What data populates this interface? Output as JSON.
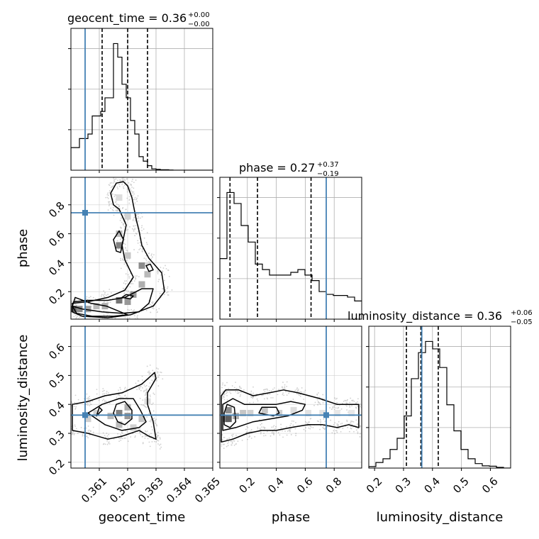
{
  "figure": {
    "kind": "corner plot",
    "truth_color": "#4682b4",
    "quantile_style": "dashed",
    "grid": true
  },
  "parameters": [
    {
      "key": "geocent_time",
      "label": "geocent_time",
      "truth": 0.3605,
      "title": {
        "main": "geocent_time = 0.36",
        "sup": "+0.00",
        "sub": "−0.00"
      },
      "quantiles": [
        0.3611,
        0.362,
        0.3627
      ],
      "range": [
        0.36,
        0.365
      ],
      "ticks": [
        {
          "v": 0.361,
          "label": "0.361"
        },
        {
          "v": 0.362,
          "label": "0.362"
        },
        {
          "v": 0.363,
          "label": "0.363"
        },
        {
          "v": 0.364,
          "label": "0.364"
        },
        {
          "v": 0.365,
          "label": "0.365"
        }
      ]
    },
    {
      "key": "phase",
      "label": "phase",
      "truth": 0.745,
      "title": {
        "main": "phase = 0.27",
        "sup": "+0.37",
        "sub": "−0.19"
      },
      "quantiles": [
        0.08,
        0.27,
        0.64
      ],
      "range": [
        0.01,
        0.99
      ],
      "ticks": [
        {
          "v": 0.2,
          "label": "0.2"
        },
        {
          "v": 0.4,
          "label": "0.4"
        },
        {
          "v": 0.6,
          "label": "0.6"
        },
        {
          "v": 0.8,
          "label": "0.8"
        }
      ]
    },
    {
      "key": "luminosity_distance",
      "label": "luminosity_distance",
      "truth": 0.363,
      "title": {
        "main": "luminosity_distance = 0.36",
        "sup": "+0.06",
        "sub": "−0.05"
      },
      "quantiles": [
        0.31,
        0.36,
        0.42
      ],
      "range": [
        0.18,
        0.67
      ],
      "ticks": [
        {
          "v": 0.2,
          "label": "0.2"
        },
        {
          "v": 0.3,
          "label": "0.3"
        },
        {
          "v": 0.4,
          "label": "0.4"
        },
        {
          "v": 0.5,
          "label": "0.5"
        },
        {
          "v": 0.6,
          "label": "0.6"
        }
      ]
    }
  ],
  "chart_data": {
    "type": "corner",
    "histograms": {
      "geocent_time": {
        "bin_edges_start": 0.36,
        "bin_width": 0.00015,
        "counts": [
          5,
          5,
          7,
          7,
          8,
          12,
          12,
          13,
          16,
          16,
          28,
          25,
          19,
          16,
          11,
          8,
          3,
          2,
          1,
          0.3,
          0.2,
          0.1,
          0.1,
          0.05,
          0,
          0,
          0,
          0,
          0,
          0,
          0,
          0,
          0,
          0
        ]
      },
      "phase": {
        "bin_edges_start": 0.01,
        "bin_width": 0.049,
        "counts": [
          11,
          23,
          21,
          17,
          14,
          10,
          9,
          8,
          8,
          8,
          8.5,
          9,
          8,
          7,
          5,
          4.5,
          4.3,
          4.3,
          4,
          3.3
        ]
      },
      "luminosity_distance": {
        "bin_edges_start": 0.18,
        "bin_width": 0.0245,
        "counts": [
          0.4,
          1.5,
          2.5,
          5,
          8,
          14,
          24,
          31,
          34,
          32,
          27,
          17,
          10,
          5,
          2.5,
          1.2,
          0.6,
          0.5,
          0.2,
          0
        ]
      }
    },
    "contours_2d": {
      "geocent_time_vs_phase": [
        [
          [
            0.36015,
            0.16
          ],
          [
            0.3607,
            0.12
          ],
          [
            0.36125,
            0.1
          ],
          [
            0.36175,
            0.06
          ],
          [
            0.362,
            0.04
          ],
          [
            0.3615,
            0.03
          ],
          [
            0.36075,
            0.03
          ],
          [
            0.3602,
            0.05
          ],
          [
            0.36005,
            0.1
          ]
        ],
        [
          [
            0.3601,
            0.13
          ],
          [
            0.3606,
            0.14
          ],
          [
            0.3613,
            0.14
          ],
          [
            0.3619,
            0.16
          ],
          [
            0.3625,
            0.22
          ],
          [
            0.3629,
            0.22
          ],
          [
            0.36275,
            0.12
          ],
          [
            0.3624,
            0.06
          ],
          [
            0.3618,
            0.05
          ],
          [
            0.3611,
            0.06
          ],
          [
            0.3604,
            0.08
          ],
          [
            0.36005,
            0.1
          ]
        ],
        [
          [
            0.36005,
            0.12
          ],
          [
            0.3606,
            0.13
          ],
          [
            0.3613,
            0.16
          ],
          [
            0.3619,
            0.21
          ],
          [
            0.3622,
            0.3
          ],
          [
            0.3619,
            0.42
          ],
          [
            0.3618,
            0.52
          ],
          [
            0.36195,
            0.66
          ],
          [
            0.3617,
            0.77
          ],
          [
            0.3615,
            0.8
          ],
          [
            0.3614,
            0.88
          ],
          [
            0.3616,
            0.95
          ],
          [
            0.36185,
            0.96
          ],
          [
            0.362,
            0.93
          ],
          [
            0.36215,
            0.85
          ],
          [
            0.3623,
            0.7
          ],
          [
            0.3624,
            0.62
          ],
          [
            0.3625,
            0.52
          ],
          [
            0.36275,
            0.43
          ],
          [
            0.3632,
            0.33
          ],
          [
            0.3633,
            0.2
          ],
          [
            0.3629,
            0.1
          ],
          [
            0.3621,
            0.04
          ],
          [
            0.3613,
            0.02
          ],
          [
            0.3604,
            0.03
          ],
          [
            0.36005,
            0.06
          ]
        ],
        [
          [
            0.3615,
            0.56
          ],
          [
            0.3616,
            0.48
          ],
          [
            0.36175,
            0.47
          ],
          [
            0.36185,
            0.56
          ],
          [
            0.3617,
            0.62
          ]
        ],
        [
          [
            0.36265,
            0.38
          ],
          [
            0.36275,
            0.34
          ],
          [
            0.3629,
            0.35
          ],
          [
            0.3628,
            0.39
          ]
        ],
        [
          [
            0.3618,
            0.16
          ],
          [
            0.3621,
            0.15
          ],
          [
            0.3622,
            0.17
          ],
          [
            0.36195,
            0.18
          ]
        ]
      ],
      "geocent_time_vs_luminosity_distance": [
        [
          [
            0.36005,
            0.31
          ],
          [
            0.3606,
            0.3
          ],
          [
            0.3613,
            0.28
          ],
          [
            0.3618,
            0.29
          ],
          [
            0.3624,
            0.31
          ],
          [
            0.36275,
            0.29
          ],
          [
            0.363,
            0.28
          ],
          [
            0.3629,
            0.34
          ],
          [
            0.3627,
            0.4
          ],
          [
            0.3627,
            0.44
          ],
          [
            0.363,
            0.49
          ],
          [
            0.36295,
            0.51
          ],
          [
            0.3625,
            0.47
          ],
          [
            0.3618,
            0.44
          ],
          [
            0.3612,
            0.43
          ],
          [
            0.3606,
            0.41
          ],
          [
            0.36005,
            0.4
          ]
        ],
        [
          [
            0.3606,
            0.37
          ],
          [
            0.3612,
            0.33
          ],
          [
            0.3618,
            0.31
          ],
          [
            0.3624,
            0.32
          ],
          [
            0.36265,
            0.34
          ],
          [
            0.36245,
            0.38
          ],
          [
            0.3622,
            0.42
          ],
          [
            0.3617,
            0.42
          ],
          [
            0.3611,
            0.4
          ]
        ],
        [
          [
            0.3615,
            0.37
          ],
          [
            0.36165,
            0.34
          ],
          [
            0.3619,
            0.33
          ],
          [
            0.36215,
            0.35
          ],
          [
            0.36215,
            0.38
          ],
          [
            0.3619,
            0.41
          ],
          [
            0.3616,
            0.4
          ]
        ],
        [
          [
            0.3609,
            0.36
          ],
          [
            0.361,
            0.37
          ],
          [
            0.3611,
            0.38
          ],
          [
            0.361,
            0.39
          ]
        ]
      ],
      "phase_vs_luminosity_distance": [
        [
          [
            0.02,
            0.27
          ],
          [
            0.1,
            0.28
          ],
          [
            0.2,
            0.3
          ],
          [
            0.3,
            0.31
          ],
          [
            0.4,
            0.31
          ],
          [
            0.5,
            0.32
          ],
          [
            0.62,
            0.33
          ],
          [
            0.72,
            0.33
          ],
          [
            0.82,
            0.32
          ],
          [
            0.9,
            0.33
          ],
          [
            0.97,
            0.32
          ],
          [
            0.97,
            0.4
          ],
          [
            0.9,
            0.4
          ],
          [
            0.82,
            0.4
          ],
          [
            0.7,
            0.42
          ],
          [
            0.55,
            0.44
          ],
          [
            0.45,
            0.45
          ],
          [
            0.35,
            0.44
          ],
          [
            0.24,
            0.43
          ],
          [
            0.14,
            0.45
          ],
          [
            0.05,
            0.45
          ],
          [
            0.02,
            0.43
          ]
        ],
        [
          [
            0.03,
            0.31
          ],
          [
            0.12,
            0.32
          ],
          [
            0.24,
            0.34
          ],
          [
            0.36,
            0.35
          ],
          [
            0.48,
            0.36
          ],
          [
            0.58,
            0.38
          ],
          [
            0.6,
            0.4
          ],
          [
            0.5,
            0.41
          ],
          [
            0.4,
            0.4
          ],
          [
            0.28,
            0.4
          ],
          [
            0.18,
            0.4
          ],
          [
            0.1,
            0.42
          ],
          [
            0.03,
            0.4
          ]
        ],
        [
          [
            0.04,
            0.33
          ],
          [
            0.08,
            0.32
          ],
          [
            0.12,
            0.34
          ],
          [
            0.11,
            0.39
          ],
          [
            0.06,
            0.4
          ],
          [
            0.04,
            0.37
          ]
        ],
        [
          [
            0.28,
            0.37
          ],
          [
            0.38,
            0.36
          ],
          [
            0.42,
            0.37
          ],
          [
            0.4,
            0.39
          ],
          [
            0.3,
            0.39
          ]
        ]
      ]
    },
    "density_cells": {
      "geocent_time_vs_phase": [
        [
          0.3601,
          0.08,
          0.7
        ],
        [
          0.3603,
          0.08,
          0.5
        ],
        [
          0.3606,
          0.08,
          0.4
        ],
        [
          0.3609,
          0.1,
          0.3
        ],
        [
          0.3612,
          0.1,
          0.35
        ],
        [
          0.3617,
          0.14,
          0.6
        ],
        [
          0.362,
          0.13,
          0.45
        ],
        [
          0.3622,
          0.18,
          0.45
        ],
        [
          0.3625,
          0.25,
          0.35
        ],
        [
          0.3627,
          0.32,
          0.3
        ],
        [
          0.3625,
          0.38,
          0.5
        ],
        [
          0.362,
          0.45,
          0.25
        ],
        [
          0.3617,
          0.52,
          0.55
        ],
        [
          0.3617,
          0.6,
          0.3
        ],
        [
          0.362,
          0.72,
          0.2
        ],
        [
          0.3617,
          0.85,
          0.15
        ]
      ],
      "geocent_time_vs_luminosity_distance": [
        [
          0.3614,
          0.36,
          0.3
        ],
        [
          0.3617,
          0.37,
          0.55
        ],
        [
          0.362,
          0.36,
          0.45
        ],
        [
          0.362,
          0.39,
          0.35
        ],
        [
          0.3617,
          0.33,
          0.3
        ],
        [
          0.3625,
          0.35,
          0.25
        ],
        [
          0.3609,
          0.37,
          0.2
        ],
        [
          0.3606,
          0.35,
          0.2
        ],
        [
          0.3627,
          0.41,
          0.15
        ],
        [
          0.3622,
          0.32,
          0.2
        ]
      ],
      "phase_vs_luminosity_distance": [
        [
          0.05,
          0.35,
          0.45
        ],
        [
          0.07,
          0.35,
          0.7
        ],
        [
          0.07,
          0.38,
          0.5
        ],
        [
          0.12,
          0.36,
          0.35
        ],
        [
          0.17,
          0.37,
          0.25
        ],
        [
          0.22,
          0.37,
          0.2
        ],
        [
          0.32,
          0.38,
          0.25
        ],
        [
          0.42,
          0.37,
          0.2
        ],
        [
          0.52,
          0.38,
          0.15
        ],
        [
          0.62,
          0.37,
          0.12
        ],
        [
          0.72,
          0.37,
          0.12
        ],
        [
          0.82,
          0.37,
          0.1
        ],
        [
          0.92,
          0.37,
          0.1
        ]
      ]
    }
  }
}
